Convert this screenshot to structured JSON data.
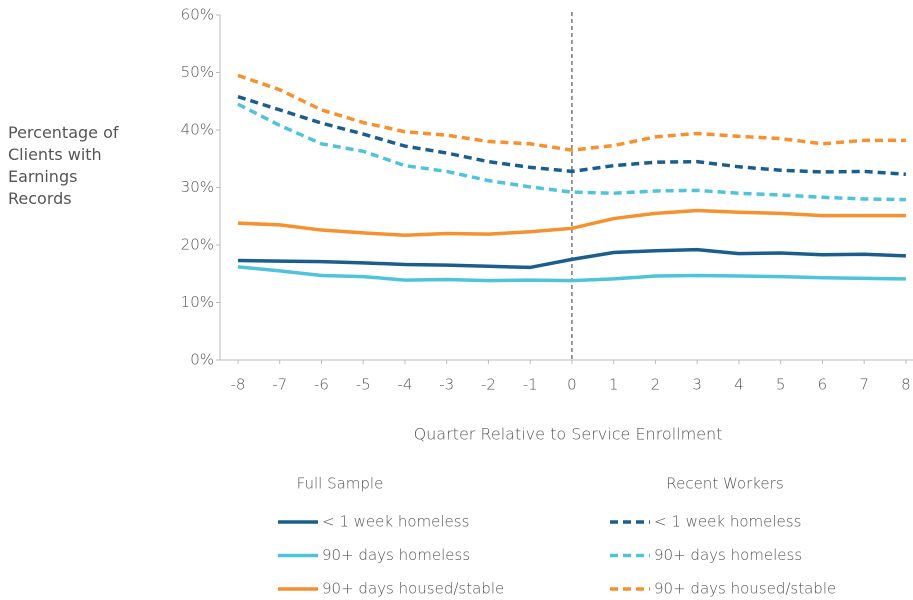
{
  "chart_data": {
    "type": "line",
    "x_label": "Quarter Relative to Service Enrollment",
    "y_label": "Percentage of Clients with Earnings Records",
    "x": [
      -8,
      -7,
      -6,
      -5,
      -4,
      -3,
      -2,
      -1,
      0,
      1,
      2,
      3,
      4,
      5,
      6,
      7,
      8
    ],
    "xlim": [
      -8.43,
      8.17
    ],
    "xticks": [
      -8,
      -7,
      -6,
      -5,
      -4,
      -3,
      -2,
      -1,
      0,
      1,
      2,
      3,
      4,
      5,
      6,
      7,
      8
    ],
    "ylim": [
      0,
      60
    ],
    "yticks": [
      {
        "value": 0,
        "label": "0%"
      },
      {
        "value": 10,
        "label": "10%"
      },
      {
        "value": 20,
        "label": "20%"
      },
      {
        "value": 30,
        "label": "30%"
      },
      {
        "value": 40,
        "label": "40%"
      },
      {
        "value": 50,
        "label": "50%"
      },
      {
        "value": 60,
        "label": "60%"
      }
    ],
    "vline": 0,
    "legend_groups": [
      {
        "title": "Full Sample",
        "style": "solid"
      },
      {
        "title": "Recent Workers",
        "style": "dashed"
      }
    ],
    "series": [
      {
        "name": "< 1 week homeless",
        "color": "#1b5e8e",
        "style": "solid",
        "values": [
          17.3,
          17.2,
          17.1,
          16.9,
          16.6,
          16.5,
          16.3,
          16.1,
          17.5,
          18.7,
          19.0,
          19.2,
          18.5,
          18.6,
          18.3,
          18.4,
          18.1
        ]
      },
      {
        "name": "90+ days homeless",
        "color": "#4fc3da",
        "style": "solid",
        "values": [
          16.2,
          15.5,
          14.7,
          14.5,
          13.9,
          14.0,
          13.8,
          13.9,
          13.8,
          14.1,
          14.6,
          14.7,
          14.6,
          14.5,
          14.3,
          14.2,
          14.1
        ]
      },
      {
        "name": "90+ days housed/stable",
        "color": "#f5912e",
        "style": "solid",
        "values": [
          23.8,
          23.5,
          22.6,
          22.1,
          21.7,
          22.0,
          21.9,
          22.3,
          22.9,
          24.6,
          25.5,
          26.0,
          25.7,
          25.5,
          25.1,
          25.1,
          25.1
        ]
      },
      {
        "name": "< 1 week homeless",
        "color": "#1b5e8e",
        "style": "dashed",
        "values": [
          45.8,
          43.5,
          41.2,
          39.3,
          37.2,
          36.0,
          34.5,
          33.5,
          32.8,
          33.8,
          34.4,
          34.5,
          33.6,
          33.0,
          32.7,
          32.8,
          32.3
        ]
      },
      {
        "name": "90+ days homeless",
        "color": "#4fc3da",
        "style": "dashed",
        "values": [
          44.5,
          40.8,
          37.6,
          36.3,
          33.8,
          32.8,
          31.2,
          30.1,
          29.2,
          29.0,
          29.4,
          29.5,
          29.0,
          28.7,
          28.3,
          28.0,
          27.9
        ]
      },
      {
        "name": "90+ days housed/stable",
        "color": "#f5912e",
        "style": "dashed",
        "values": [
          49.5,
          47.0,
          43.5,
          41.3,
          39.7,
          39.1,
          38.0,
          37.6,
          36.5,
          37.3,
          38.8,
          39.4,
          38.9,
          38.5,
          37.6,
          38.2,
          38.2
        ]
      }
    ]
  }
}
